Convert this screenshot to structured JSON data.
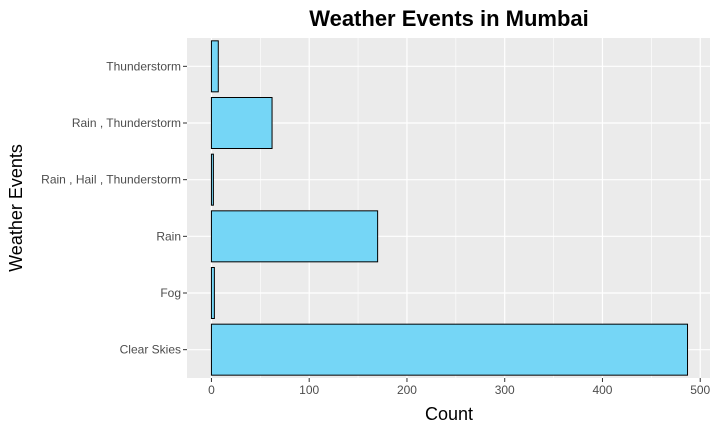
{
  "chart_data": {
    "type": "bar",
    "orientation": "horizontal",
    "title": "Weather Events in Mumbai",
    "xlabel": "Count",
    "ylabel": "Weather Events",
    "categories": [
      "Clear Skies",
      "Fog",
      "Rain",
      "Rain , Hail , Thunderstorm",
      "Rain , Thunderstorm",
      "Thunderstorm"
    ],
    "values": [
      487,
      3,
      170,
      2,
      62,
      7
    ],
    "xlim": [
      -25,
      510
    ],
    "xticks": [
      0,
      100,
      200,
      300,
      400,
      500
    ],
    "xtick_labels": [
      "0",
      "100",
      "200",
      "300",
      "400",
      "500"
    ],
    "grid": true,
    "colors": {
      "bar_fill": "#75D6F6",
      "bar_stroke": "#000000",
      "panel": "#EBEBEB",
      "grid": "#FFFFFF"
    }
  }
}
